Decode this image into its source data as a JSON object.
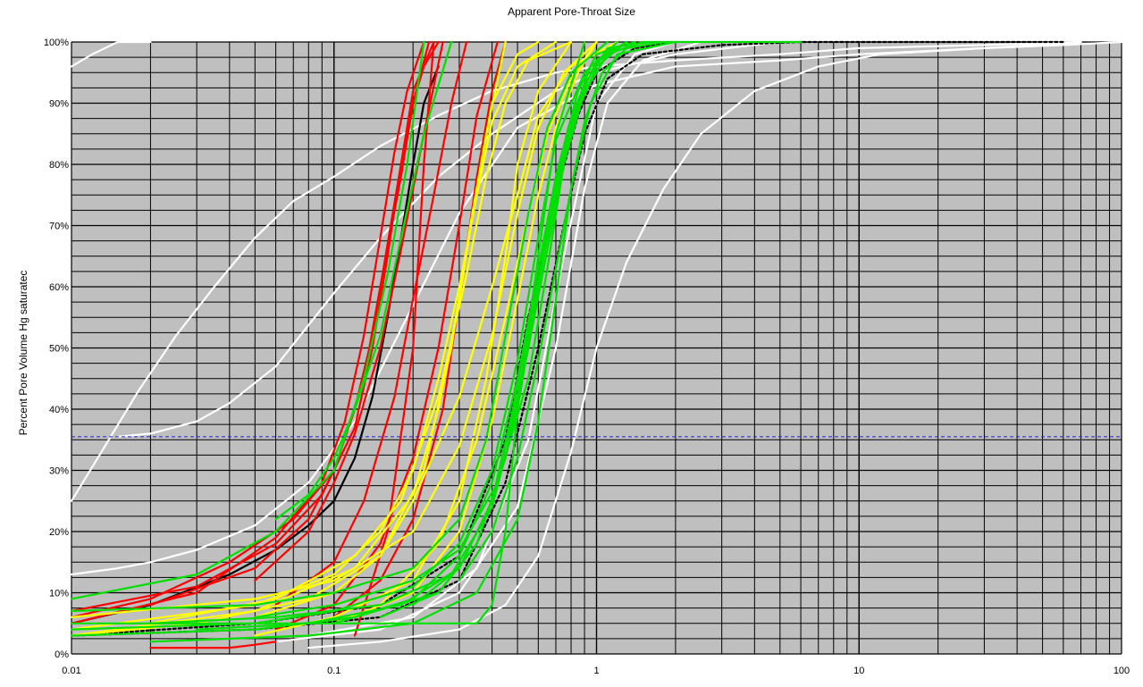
{
  "chart_data": {
    "type": "line",
    "title": "Apparent Pore-Throat Size",
    "xlabel": "",
    "ylabel": "Percent Pore Volume Hg saturatec",
    "x_scale": "log",
    "xlim": [
      0.01,
      100
    ],
    "ylim": [
      0,
      100
    ],
    "x_tick_labels": [
      "0.01",
      "0.1",
      "1",
      "10",
      "100"
    ],
    "x_tick_values": [
      0.01,
      0.1,
      1,
      10,
      100
    ],
    "y_tick_labels": [
      "0%",
      "10%",
      "20%",
      "30%",
      "40%",
      "50%",
      "60%",
      "70%",
      "80%",
      "90%",
      "100%"
    ],
    "y_tick_values": [
      0,
      10,
      20,
      30,
      40,
      50,
      60,
      70,
      80,
      90,
      100
    ],
    "grid": true,
    "plot_background": "#c0bfc0",
    "reference_line": {
      "y": 35.5,
      "color": "#2222cc",
      "style": "dashed"
    },
    "series": [
      {
        "color": "#ffffff",
        "x": [
          0.01,
          0.012,
          0.015,
          0.02
        ],
        "y": [
          96,
          98,
          100,
          100
        ]
      },
      {
        "color": "#ffffff",
        "x": [
          0.01,
          0.013,
          0.018,
          0.025,
          0.035,
          0.05,
          0.07,
          0.1,
          0.15,
          0.25,
          0.4,
          0.7,
          1,
          2,
          5,
          10,
          30,
          70
        ],
        "y": [
          25,
          33,
          43,
          52,
          60,
          68,
          74,
          78,
          83,
          88,
          92,
          95,
          96,
          97,
          98,
          99,
          99.5,
          100
        ]
      },
      {
        "color": "#ffffff",
        "x": [
          0.01,
          0.015,
          0.02,
          0.03,
          0.05,
          0.08,
          0.12,
          0.2,
          0.3,
          0.5,
          1,
          2,
          5,
          10,
          30,
          70
        ],
        "y": [
          13,
          14,
          15,
          17,
          21,
          28,
          38,
          57,
          72,
          86,
          93,
          96,
          97,
          98,
          99,
          100
        ]
      },
      {
        "color": "#ffffff",
        "x": [
          0.015,
          0.02,
          0.03,
          0.04,
          0.06,
          0.1,
          0.15,
          0.25,
          0.4,
          0.7,
          1,
          2,
          5
        ],
        "y": [
          35.5,
          36,
          38,
          41,
          47,
          59,
          68,
          78,
          85,
          92,
          95,
          98,
          100
        ]
      },
      {
        "color": "#ffffff",
        "x": [
          0.08,
          0.15,
          0.3,
          0.45,
          0.6,
          0.8,
          1,
          1.3,
          1.8,
          2.5,
          4,
          7,
          12,
          30,
          60,
          100
        ],
        "y": [
          1,
          2,
          4,
          8,
          16,
          33,
          50,
          64,
          76,
          85,
          92,
          96,
          98,
          99,
          99.5,
          100
        ]
      },
      {
        "color": "#ffffff",
        "x": [
          0.06,
          0.15,
          0.3,
          0.5,
          0.7,
          0.9,
          1.1,
          1.5,
          2.5
        ],
        "y": [
          2,
          4,
          10,
          24,
          50,
          76,
          90,
          97,
          100
        ]
      },
      {
        "color": "#ffffff",
        "x": [
          0.08,
          0.2,
          0.35,
          0.55,
          0.75,
          1,
          1.4,
          2
        ],
        "y": [
          3,
          6,
          14,
          35,
          65,
          90,
          98,
          100
        ]
      },
      {
        "color": "#000000",
        "x": [
          0.01,
          0.02,
          0.04,
          0.06,
          0.08,
          0.1,
          0.12,
          0.14,
          0.16,
          0.18,
          0.2,
          0.22,
          0.25
        ],
        "y": [
          5,
          8,
          13,
          17,
          21,
          25,
          32,
          42,
          55,
          68,
          80,
          90,
          96
        ]
      },
      {
        "color": "#000000",
        "dashed": true,
        "x": [
          0.01,
          0.05,
          0.15,
          0.3,
          0.45,
          0.6,
          0.75,
          0.9,
          1.1,
          1.5,
          3,
          6,
          20,
          60
        ],
        "y": [
          3,
          4,
          6,
          12,
          28,
          50,
          70,
          85,
          94,
          98,
          99.5,
          100,
          100,
          100
        ]
      },
      {
        "color": "#000000",
        "dashed": true,
        "x": [
          0.01,
          0.05,
          0.15,
          0.3,
          0.45,
          0.55,
          0.7,
          0.85,
          1,
          1.4,
          2
        ],
        "y": [
          3,
          5,
          8,
          16,
          35,
          55,
          75,
          88,
          95,
          99,
          100
        ]
      },
      {
        "color": "#ff0000",
        "x": [
          0.01,
          0.02,
          0.04,
          0.07,
          0.1,
          0.12,
          0.14,
          0.16,
          0.18,
          0.2,
          0.22,
          0.25
        ],
        "y": [
          6,
          9,
          15,
          22,
          30,
          40,
          52,
          67,
          80,
          90,
          96,
          100
        ]
      },
      {
        "color": "#ff0000",
        "x": [
          0.01,
          0.03,
          0.06,
          0.09,
          0.11,
          0.13,
          0.15,
          0.17,
          0.19,
          0.22
        ],
        "y": [
          5,
          10,
          19,
          28,
          38,
          52,
          68,
          82,
          92,
          100
        ]
      },
      {
        "color": "#ff0000",
        "x": [
          0.01,
          0.03,
          0.06,
          0.09,
          0.12,
          0.14,
          0.16,
          0.18,
          0.2,
          0.24
        ],
        "y": [
          7,
          11,
          18,
          26,
          37,
          50,
          65,
          80,
          92,
          100
        ]
      },
      {
        "color": "#ff0000",
        "x": [
          0.02,
          0.05,
          0.08,
          0.1,
          0.13,
          0.15,
          0.18,
          0.2,
          0.23
        ],
        "y": [
          8,
          14,
          22,
          30,
          45,
          60,
          78,
          90,
          100
        ]
      },
      {
        "color": "#ff0000",
        "x": [
          0.05,
          0.08,
          0.1,
          0.12,
          0.15,
          0.18,
          0.22,
          0.26
        ],
        "y": [
          12,
          20,
          28,
          36,
          50,
          66,
          85,
          100
        ]
      },
      {
        "color": "#ff0000",
        "x": [
          0.06,
          0.1,
          0.13,
          0.17,
          0.2,
          0.24,
          0.28,
          0.32
        ],
        "y": [
          8,
          15,
          25,
          42,
          58,
          75,
          90,
          100
        ]
      },
      {
        "color": "#ff0000",
        "x": [
          0.06,
          0.1,
          0.15,
          0.2,
          0.25,
          0.3,
          0.35,
          0.42
        ],
        "y": [
          4,
          8,
          18,
          32,
          50,
          70,
          88,
          100
        ]
      },
      {
        "color": "#ff0000",
        "x": [
          0.1,
          0.15,
          0.2,
          0.26,
          0.3,
          0.35,
          0.4,
          0.45
        ],
        "y": [
          6,
          12,
          22,
          40,
          58,
          78,
          92,
          100
        ]
      },
      {
        "color": "#ff0000",
        "x": [
          0.02,
          0.04,
          0.05,
          0.06
        ],
        "y": [
          1,
          1,
          1.5,
          2
        ]
      },
      {
        "color": "#ff0000",
        "x": [
          0.12,
          0.16,
          0.2,
          0.22,
          0.24
        ],
        "y": [
          3,
          20,
          50,
          80,
          100
        ]
      },
      {
        "color": "#ffff00",
        "x": [
          0.01,
          0.05,
          0.1,
          0.15,
          0.2,
          0.25,
          0.3,
          0.35,
          0.4,
          0.5,
          0.7
        ],
        "y": [
          4,
          8,
          13,
          20,
          30,
          45,
          60,
          75,
          87,
          96,
          100
        ]
      },
      {
        "color": "#ffff00",
        "x": [
          0.01,
          0.05,
          0.12,
          0.2,
          0.25,
          0.3,
          0.35,
          0.4,
          0.5,
          0.6
        ],
        "y": [
          3,
          7,
          14,
          26,
          40,
          58,
          76,
          90,
          98,
          100
        ]
      },
      {
        "color": "#ffff00",
        "x": [
          0.02,
          0.06,
          0.12,
          0.18,
          0.25,
          0.32,
          0.38,
          0.45,
          0.55,
          0.8
        ],
        "y": [
          5,
          9,
          16,
          25,
          42,
          62,
          78,
          90,
          97,
          100
        ]
      },
      {
        "color": "#ffff00",
        "x": [
          0.01,
          0.05,
          0.1,
          0.2,
          0.3,
          0.4,
          0.5,
          0.6,
          0.75,
          1
        ],
        "y": [
          6,
          9,
          12,
          20,
          34,
          52,
          72,
          86,
          95,
          100
        ]
      },
      {
        "color": "#ffff00",
        "x": [
          0.05,
          0.1,
          0.15,
          0.2,
          0.3,
          0.4,
          0.5,
          0.6,
          0.8,
          1.2
        ],
        "y": [
          6,
          10,
          16,
          25,
          42,
          60,
          75,
          88,
          96,
          100
        ]
      },
      {
        "color": "#ffff00",
        "x": [
          0.05,
          0.1,
          0.2,
          0.3,
          0.38,
          0.45,
          0.5,
          0.6,
          0.8
        ],
        "y": [
          3,
          6,
          12,
          25,
          45,
          65,
          80,
          92,
          100
        ]
      },
      {
        "color": "#ffff00",
        "x": [
          0.1,
          0.2,
          0.3,
          0.4,
          0.5,
          0.6,
          0.7,
          0.85,
          1
        ],
        "y": [
          5,
          10,
          20,
          38,
          58,
          75,
          86,
          95,
          100
        ]
      },
      {
        "color": "#ffff00",
        "x": [
          0.01,
          0.03,
          0.08,
          0.15,
          0.22,
          0.28,
          0.33,
          0.38,
          0.45
        ],
        "y": [
          3,
          5,
          9,
          16,
          30,
          50,
          70,
          85,
          100
        ]
      },
      {
        "color": "#ffff00",
        "x": [
          0.15,
          0.25,
          0.35,
          0.45,
          0.55,
          0.65,
          0.8,
          1
        ],
        "y": [
          8,
          18,
          35,
          55,
          72,
          85,
          94,
          100
        ]
      },
      {
        "color": "#00e000",
        "x": [
          0.01,
          0.03,
          0.06,
          0.1,
          0.13,
          0.16,
          0.19,
          0.22
        ],
        "y": [
          9,
          13,
          20,
          30,
          45,
          62,
          80,
          100
        ]
      },
      {
        "color": "#00e000",
        "x": [
          0.06,
          0.08,
          0.1,
          0.12,
          0.15,
          0.18,
          0.22,
          0.28
        ],
        "y": [
          22,
          26,
          32,
          40,
          52,
          68,
          85,
          100
        ]
      },
      {
        "color": "#00e000",
        "x": [
          0.01,
          0.05,
          0.1,
          0.2,
          0.3,
          0.38,
          0.45,
          0.55,
          0.65,
          0.8,
          1.1
        ],
        "y": [
          7,
          8,
          10,
          14,
          22,
          35,
          52,
          72,
          86,
          95,
          100
        ]
      },
      {
        "color": "#00e000",
        "x": [
          0.01,
          0.05,
          0.1,
          0.2,
          0.3,
          0.4,
          0.5,
          0.6,
          0.7,
          0.9,
          1.2
        ],
        "y": [
          4,
          5,
          7,
          11,
          18,
          30,
          48,
          68,
          84,
          95,
          100
        ]
      },
      {
        "color": "#00e000",
        "x": [
          0.01,
          0.05,
          0.12,
          0.25,
          0.35,
          0.45,
          0.55,
          0.65,
          0.78,
          0.95,
          1.3
        ],
        "y": [
          3,
          4,
          6,
          10,
          18,
          32,
          50,
          70,
          86,
          96,
          100
        ]
      },
      {
        "color": "#00e000",
        "x": [
          0.02,
          0.06,
          0.15,
          0.28,
          0.4,
          0.5,
          0.6,
          0.7,
          0.85,
          1,
          1.4
        ],
        "y": [
          5,
          6,
          8,
          13,
          24,
          40,
          60,
          78,
          92,
          98,
          100
        ]
      },
      {
        "color": "#00e000",
        "x": [
          0.05,
          0.1,
          0.2,
          0.3,
          0.42,
          0.55,
          0.65,
          0.75,
          0.9,
          1.1,
          1.6
        ],
        "y": [
          6,
          8,
          12,
          17,
          28,
          45,
          63,
          80,
          93,
          99,
          100
        ]
      },
      {
        "color": "#00e000",
        "x": [
          0.03,
          0.08,
          0.18,
          0.3,
          0.4,
          0.48,
          0.58,
          0.7,
          0.85,
          1.1,
          1.5
        ],
        "y": [
          4,
          5,
          8,
          14,
          25,
          40,
          58,
          76,
          90,
          98,
          100
        ]
      },
      {
        "color": "#00e000",
        "x": [
          0.1,
          0.2,
          0.3,
          0.4,
          0.5,
          0.6,
          0.7,
          0.85,
          1,
          1.3
        ],
        "y": [
          5,
          9,
          16,
          28,
          45,
          63,
          78,
          90,
          97,
          100
        ]
      },
      {
        "color": "#00e000",
        "x": [
          0.01,
          0.05,
          0.1,
          0.2,
          0.3,
          0.35,
          0.4,
          0.45,
          0.5,
          0.6,
          0.7,
          0.9
        ],
        "y": [
          5,
          5,
          5,
          5,
          5,
          5,
          8,
          20,
          40,
          65,
          85,
          100
        ]
      },
      {
        "color": "#00e000",
        "x": [
          0.15,
          0.25,
          0.35,
          0.45,
          0.55,
          0.65,
          0.75,
          0.9,
          1.1,
          1.5,
          3,
          6
        ],
        "y": [
          6,
          10,
          18,
          32,
          50,
          66,
          80,
          92,
          98,
          100,
          100,
          100
        ]
      },
      {
        "color": "#00e000",
        "x": [
          0.02,
          0.08,
          0.2,
          0.35,
          0.5,
          0.6,
          0.7,
          0.8,
          0.95,
          1.2,
          2
        ],
        "y": [
          2,
          3,
          5,
          10,
          22,
          38,
          58,
          76,
          90,
          98,
          100
        ]
      },
      {
        "color": "#00e000",
        "x": [
          0.2,
          0.3,
          0.4,
          0.5,
          0.6,
          0.7,
          0.8,
          1,
          1.3
        ],
        "y": [
          8,
          14,
          25,
          42,
          60,
          75,
          86,
          96,
          100
        ]
      },
      {
        "color": "#00e000",
        "x": [
          0.3,
          0.4,
          0.5,
          0.6,
          0.7,
          0.8,
          0.9,
          1.05,
          1.3,
          1.8
        ],
        "y": [
          12,
          20,
          32,
          48,
          63,
          76,
          87,
          95,
          99,
          100
        ]
      }
    ]
  }
}
